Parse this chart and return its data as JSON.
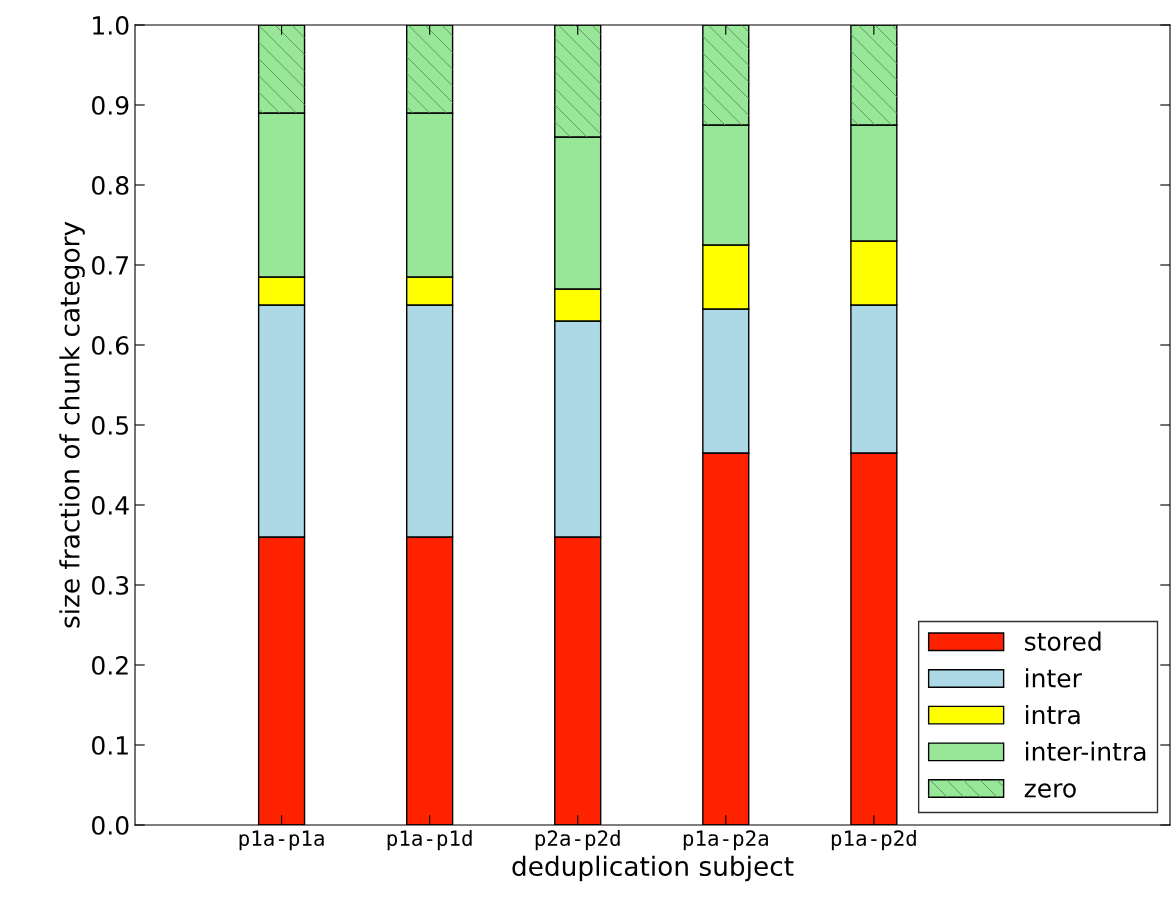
{
  "chart_data": {
    "type": "bar",
    "stacked": true,
    "xlabel": "deduplication subject",
    "ylabel": "size fraction of chunk category",
    "categories": [
      "p1a-p1a",
      "p1a-p1d",
      "p2a-p2d",
      "p1a-p2a",
      "p1a-p2d"
    ],
    "series": [
      {
        "name": "stored",
        "color": "#ff2200",
        "values": [
          0.36,
          0.36,
          0.36,
          0.465,
          0.465
        ]
      },
      {
        "name": "inter",
        "color": "#add8e6",
        "values": [
          0.29,
          0.29,
          0.27,
          0.18,
          0.185
        ]
      },
      {
        "name": "intra",
        "color": "#ffff00",
        "values": [
          0.035,
          0.035,
          0.04,
          0.08,
          0.08
        ]
      },
      {
        "name": "inter-intra",
        "color": "#98e698",
        "values": [
          0.205,
          0.205,
          0.19,
          0.15,
          0.145
        ]
      },
      {
        "name": "zero",
        "color": "#98e698",
        "values": [
          0.11,
          0.11,
          0.14,
          0.125,
          0.125
        ]
      }
    ],
    "ylim": [
      0,
      1
    ],
    "yticks": [
      {
        "value": 0,
        "label": "0.0"
      },
      {
        "value": 0.1,
        "label": "0.1"
      },
      {
        "value": 0.2,
        "label": "0.2"
      },
      {
        "value": 0.3,
        "label": "0.3"
      },
      {
        "value": 0.4,
        "label": "0.4"
      },
      {
        "value": 0.5,
        "label": "0.5"
      },
      {
        "value": 0.6,
        "label": "0.6"
      },
      {
        "value": 0.7,
        "label": "0.7"
      },
      {
        "value": 0.8,
        "label": "0.8"
      },
      {
        "value": 0.9,
        "label": "0.9"
      },
      {
        "value": 1,
        "label": "1.0"
      }
    ],
    "legend": "lower right",
    "grid": false
  }
}
